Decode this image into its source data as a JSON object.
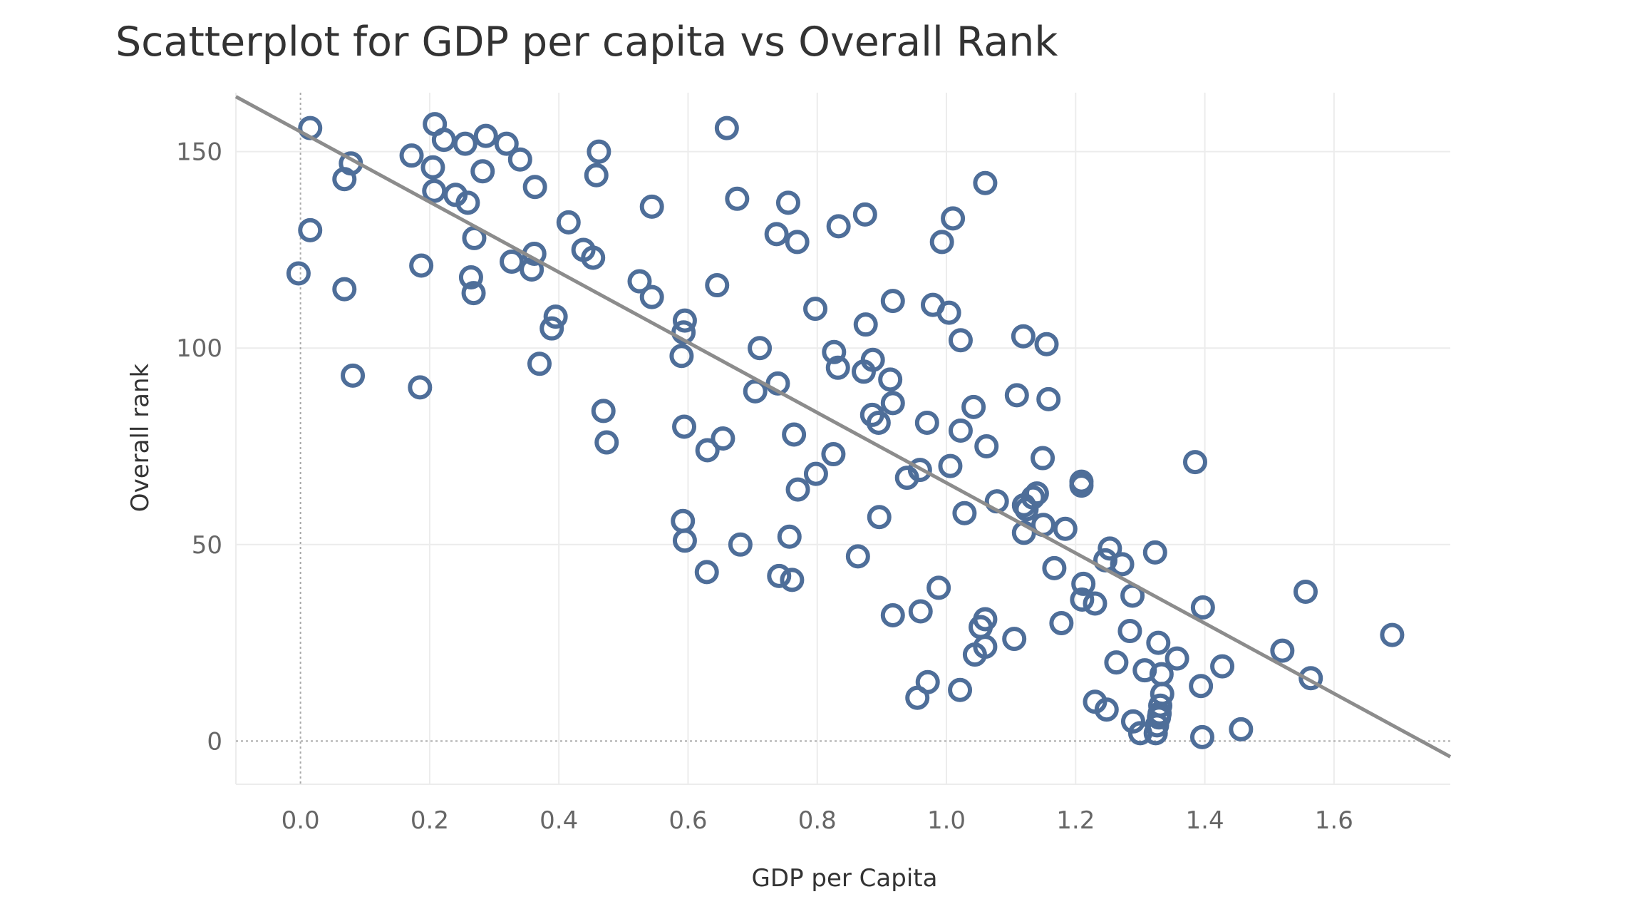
{
  "chart_data": {
    "type": "scatter",
    "title": "Scatterplot for GDP per capita vs Overall Rank",
    "xlabel": "GDP per Capita",
    "ylabel": "Overall rank",
    "xlim": [
      -0.1,
      1.78
    ],
    "ylim": [
      -11,
      165
    ],
    "xticks": [
      0.0,
      0.2,
      0.4,
      0.6,
      0.8,
      1.0,
      1.2,
      1.4,
      1.6
    ],
    "xtick_labels": [
      "0.0",
      "0.2",
      "0.4",
      "0.6",
      "0.8",
      "1.0",
      "1.2",
      "1.4",
      "1.6"
    ],
    "yticks": [
      0,
      50,
      100,
      150
    ],
    "ytick_labels": [
      "0",
      "50",
      "100",
      "150"
    ],
    "grid": true,
    "legend": "none",
    "point_color": "#4e6e99",
    "trend_color": "#8c8c8c",
    "trend_line": {
      "x": [
        -0.1,
        1.78
      ],
      "y": [
        164,
        -4
      ]
    },
    "points": [
      {
        "x": 0.015,
        "y": 156
      },
      {
        "x": 0.208,
        "y": 157
      },
      {
        "x": 0.287,
        "y": 154
      },
      {
        "x": 0.66,
        "y": 156
      },
      {
        "x": 0.222,
        "y": 153
      },
      {
        "x": 0.255,
        "y": 152
      },
      {
        "x": 0.319,
        "y": 152
      },
      {
        "x": 0.462,
        "y": 150
      },
      {
        "x": 0.172,
        "y": 149
      },
      {
        "x": 0.34,
        "y": 148
      },
      {
        "x": 0.078,
        "y": 147
      },
      {
        "x": 0.205,
        "y": 146
      },
      {
        "x": 0.282,
        "y": 145
      },
      {
        "x": 0.458,
        "y": 144
      },
      {
        "x": 0.068,
        "y": 143
      },
      {
        "x": 1.06,
        "y": 142
      },
      {
        "x": 0.363,
        "y": 141
      },
      {
        "x": 0.207,
        "y": 140
      },
      {
        "x": 0.24,
        "y": 139
      },
      {
        "x": 0.676,
        "y": 138
      },
      {
        "x": 0.259,
        "y": 137
      },
      {
        "x": 0.755,
        "y": 137
      },
      {
        "x": 0.544,
        "y": 136
      },
      {
        "x": 0.874,
        "y": 134
      },
      {
        "x": 1.01,
        "y": 133
      },
      {
        "x": 0.415,
        "y": 132
      },
      {
        "x": 0.833,
        "y": 131
      },
      {
        "x": 0.015,
        "y": 130
      },
      {
        "x": 0.737,
        "y": 129
      },
      {
        "x": 0.269,
        "y": 128
      },
      {
        "x": 0.769,
        "y": 127
      },
      {
        "x": 0.993,
        "y": 127
      },
      {
        "x": 0.438,
        "y": 125
      },
      {
        "x": 0.362,
        "y": 124
      },
      {
        "x": 0.453,
        "y": 123
      },
      {
        "x": 0.327,
        "y": 122
      },
      {
        "x": 0.187,
        "y": 121
      },
      {
        "x": 0.358,
        "y": 120
      },
      {
        "x": -0.003,
        "y": 119
      },
      {
        "x": 0.264,
        "y": 118
      },
      {
        "x": 0.525,
        "y": 117
      },
      {
        "x": 0.645,
        "y": 116
      },
      {
        "x": 0.068,
        "y": 115
      },
      {
        "x": 0.268,
        "y": 114
      },
      {
        "x": 0.544,
        "y": 113
      },
      {
        "x": 0.917,
        "y": 112
      },
      {
        "x": 0.979,
        "y": 111
      },
      {
        "x": 0.797,
        "y": 110
      },
      {
        "x": 1.004,
        "y": 109
      },
      {
        "x": 0.395,
        "y": 108
      },
      {
        "x": 0.595,
        "y": 107
      },
      {
        "x": 0.875,
        "y": 106
      },
      {
        "x": 0.389,
        "y": 105
      },
      {
        "x": 0.593,
        "y": 104
      },
      {
        "x": 1.119,
        "y": 103
      },
      {
        "x": 1.022,
        "y": 102
      },
      {
        "x": 1.155,
        "y": 101
      },
      {
        "x": 0.711,
        "y": 100
      },
      {
        "x": 0.826,
        "y": 99
      },
      {
        "x": 0.59,
        "y": 98
      },
      {
        "x": 0.886,
        "y": 97
      },
      {
        "x": 0.37,
        "y": 96
      },
      {
        "x": 0.832,
        "y": 95
      },
      {
        "x": 0.872,
        "y": 94
      },
      {
        "x": 0.081,
        "y": 93
      },
      {
        "x": 0.913,
        "y": 92
      },
      {
        "x": 0.739,
        "y": 91
      },
      {
        "x": 0.185,
        "y": 90
      },
      {
        "x": 0.704,
        "y": 89
      },
      {
        "x": 1.109,
        "y": 88
      },
      {
        "x": 1.158,
        "y": 87
      },
      {
        "x": 0.917,
        "y": 86
      },
      {
        "x": 1.042,
        "y": 85
      },
      {
        "x": 0.469,
        "y": 84
      },
      {
        "x": 0.885,
        "y": 83
      },
      {
        "x": 0.895,
        "y": 81
      },
      {
        "x": 0.97,
        "y": 81
      },
      {
        "x": 0.594,
        "y": 80
      },
      {
        "x": 1.022,
        "y": 79
      },
      {
        "x": 0.764,
        "y": 78
      },
      {
        "x": 0.654,
        "y": 77
      },
      {
        "x": 0.474,
        "y": 76
      },
      {
        "x": 1.062,
        "y": 75
      },
      {
        "x": 0.63,
        "y": 74
      },
      {
        "x": 0.825,
        "y": 73
      },
      {
        "x": 1.149,
        "y": 72
      },
      {
        "x": 1.385,
        "y": 71
      },
      {
        "x": 1.006,
        "y": 70
      },
      {
        "x": 0.959,
        "y": 69
      },
      {
        "x": 0.798,
        "y": 68
      },
      {
        "x": 0.939,
        "y": 67
      },
      {
        "x": 1.209,
        "y": 66
      },
      {
        "x": 1.209,
        "y": 65
      },
      {
        "x": 0.77,
        "y": 64
      },
      {
        "x": 1.14,
        "y": 63
      },
      {
        "x": 1.134,
        "y": 62
      },
      {
        "x": 1.078,
        "y": 61
      },
      {
        "x": 1.12,
        "y": 60
      },
      {
        "x": 1.124,
        "y": 59
      },
      {
        "x": 1.028,
        "y": 58
      },
      {
        "x": 0.896,
        "y": 57
      },
      {
        "x": 0.592,
        "y": 56
      },
      {
        "x": 1.15,
        "y": 55
      },
      {
        "x": 1.184,
        "y": 54
      },
      {
        "x": 1.12,
        "y": 53
      },
      {
        "x": 0.757,
        "y": 52
      },
      {
        "x": 0.595,
        "y": 51
      },
      {
        "x": 0.681,
        "y": 50
      },
      {
        "x": 1.253,
        "y": 49
      },
      {
        "x": 1.323,
        "y": 48
      },
      {
        "x": 0.863,
        "y": 47
      },
      {
        "x": 1.246,
        "y": 46
      },
      {
        "x": 1.272,
        "y": 45
      },
      {
        "x": 1.167,
        "y": 44
      },
      {
        "x": 0.629,
        "y": 43
      },
      {
        "x": 0.741,
        "y": 42
      },
      {
        "x": 0.761,
        "y": 41
      },
      {
        "x": 1.212,
        "y": 40
      },
      {
        "x": 0.988,
        "y": 39
      },
      {
        "x": 1.556,
        "y": 38
      },
      {
        "x": 1.288,
        "y": 37
      },
      {
        "x": 1.21,
        "y": 36
      },
      {
        "x": 1.23,
        "y": 35
      },
      {
        "x": 1.397,
        "y": 34
      },
      {
        "x": 0.96,
        "y": 33
      },
      {
        "x": 0.917,
        "y": 32
      },
      {
        "x": 1.06,
        "y": 31
      },
      {
        "x": 1.178,
        "y": 30
      },
      {
        "x": 1.053,
        "y": 29
      },
      {
        "x": 1.284,
        "y": 28
      },
      {
        "x": 1.69,
        "y": 27
      },
      {
        "x": 1.105,
        "y": 26
      },
      {
        "x": 1.328,
        "y": 25
      },
      {
        "x": 1.06,
        "y": 24
      },
      {
        "x": 1.52,
        "y": 23
      },
      {
        "x": 1.044,
        "y": 22
      },
      {
        "x": 1.357,
        "y": 21
      },
      {
        "x": 1.263,
        "y": 20
      },
      {
        "x": 1.427,
        "y": 19
      },
      {
        "x": 1.307,
        "y": 18
      },
      {
        "x": 1.333,
        "y": 17
      },
      {
        "x": 1.564,
        "y": 16
      },
      {
        "x": 0.971,
        "y": 15
      },
      {
        "x": 1.394,
        "y": 14
      },
      {
        "x": 1.021,
        "y": 13
      },
      {
        "x": 1.334,
        "y": 12
      },
      {
        "x": 0.955,
        "y": 11
      },
      {
        "x": 1.23,
        "y": 10
      },
      {
        "x": 1.331,
        "y": 9
      },
      {
        "x": 1.248,
        "y": 8
      },
      {
        "x": 1.33,
        "y": 7
      },
      {
        "x": 1.329,
        "y": 6
      },
      {
        "x": 1.289,
        "y": 5
      },
      {
        "x": 1.326,
        "y": 4
      },
      {
        "x": 1.456,
        "y": 3
      },
      {
        "x": 1.324,
        "y": 2
      },
      {
        "x": 1.3,
        "y": 2
      },
      {
        "x": 1.396,
        "y": 1
      }
    ]
  }
}
